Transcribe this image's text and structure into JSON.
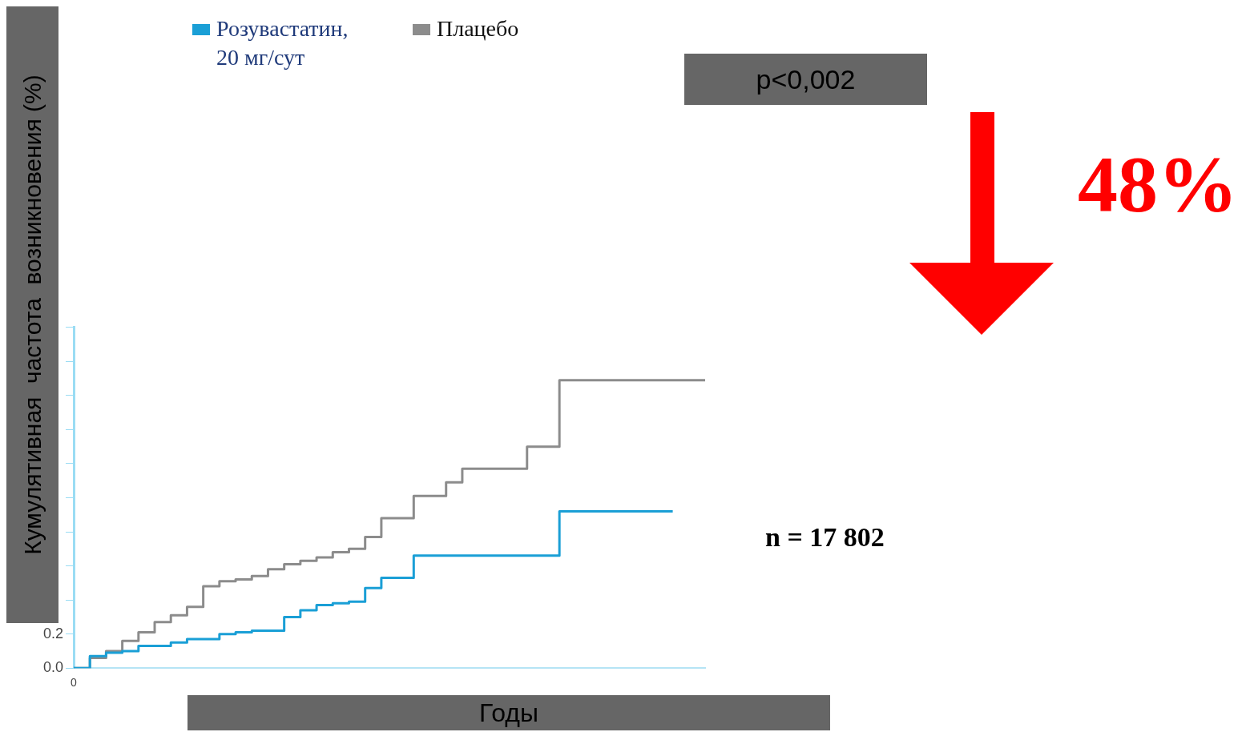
{
  "chart_data": {
    "type": "step",
    "ylabel": "Кумулятивная  частота  возникновения (%)",
    "xlabel": "Годы",
    "legend": "top left",
    "grid": false,
    "marker": "none",
    "categories": [
      "0",
      null,
      null,
      null,
      null,
      null,
      null,
      null,
      null,
      null,
      null,
      null,
      null,
      null,
      null,
      null,
      null,
      null,
      null,
      null,
      null,
      null,
      null,
      null,
      null,
      null,
      null,
      null,
      null,
      null,
      null,
      null,
      null,
      null,
      null,
      null,
      null,
      null,
      null,
      null
    ],
    "ylim": [
      0,
      2.0
    ],
    "yticks": [
      {
        "value": 0,
        "label": "0.0"
      },
      0.2,
      {
        "value": 0.4,
        "label": null
      },
      {
        "value": 0.6,
        "label": null
      },
      {
        "value": 0.8,
        "label": null
      },
      {
        "value": 1.0,
        "label": null
      },
      {
        "value": 1.2,
        "label": null
      },
      {
        "value": 1.4,
        "label": null
      },
      {
        "value": 1.6,
        "label": null
      },
      {
        "value": 1.8,
        "label": null
      },
      {
        "value": 2.0,
        "label": null
      }
    ],
    "series": [
      {
        "name": "Розувастатин, 20 мг/сут",
        "color": "#1a9fd6",
        "values": [
          0,
          0.07,
          0.09,
          0.1,
          0.13,
          0.13,
          0.15,
          0.17,
          0.17,
          0.2,
          0.21,
          0.22,
          0.22,
          0.3,
          0.34,
          0.37,
          0.38,
          0.39,
          0.47,
          0.53,
          0.53,
          0.66,
          0.66,
          0.66,
          0.66,
          0.66,
          0.66,
          0.66,
          0.66,
          0.66,
          0.92,
          0.92,
          0.92,
          0.92,
          0.92,
          0.92,
          0.92,
          0.92,
          null,
          null
        ]
      },
      {
        "name": "Плацебо",
        "color": "#8c8c8c",
        "values": [
          0,
          0.06,
          0.1,
          0.16,
          0.21,
          0.27,
          0.31,
          0.36,
          0.48,
          0.51,
          0.52,
          0.54,
          0.58,
          0.61,
          0.63,
          0.65,
          0.68,
          0.7,
          0.77,
          0.88,
          0.88,
          1.01,
          1.01,
          1.09,
          1.17,
          1.17,
          1.17,
          1.17,
          1.3,
          1.3,
          1.69,
          1.69,
          1.69,
          1.69,
          1.69,
          1.69,
          1.69,
          1.69,
          1.69,
          1.69
        ]
      }
    ],
    "annotations": [
      "p<0,002",
      "48%",
      "n = 17 802"
    ]
  }
}
